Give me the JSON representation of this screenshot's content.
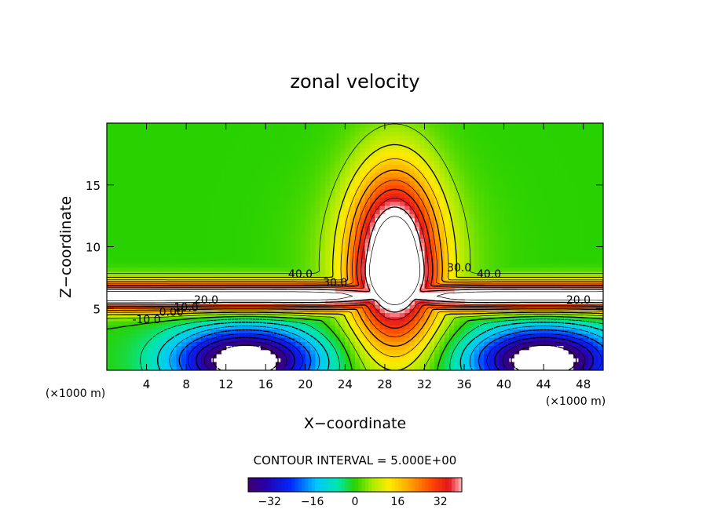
{
  "chart_data": {
    "type": "heatmap",
    "title": "zonal velocity",
    "xlabel": "X−coordinate",
    "ylabel": "Z−coordinate",
    "x_unit_left": "(×1000 m)",
    "x_unit_right": "(×1000 m)",
    "xlim": [
      0,
      50
    ],
    "ylim": [
      0,
      20
    ],
    "x_ticks": [
      4,
      8,
      12,
      16,
      20,
      24,
      28,
      32,
      36,
      40,
      44,
      48
    ],
    "y_ticks": [
      5,
      10,
      15
    ],
    "contour_interval_text": "CONTOUR INTERVAL = 5.000E+00",
    "contour_labels": [
      {
        "text": "40.0",
        "x": 19.5,
        "z": 7.5
      },
      {
        "text": "30.0",
        "x": 23.0,
        "z": 6.8
      },
      {
        "text": "20.0",
        "x": 10.0,
        "z": 5.4
      },
      {
        "text": "10.0",
        "x": 8.0,
        "z": 4.8
      },
      {
        "text": "0.00",
        "x": 6.5,
        "z": 4.4
      },
      {
        "text": "-10.0",
        "x": 4.0,
        "z": 3.8
      },
      {
        "text": "30.0",
        "x": 35.5,
        "z": 8.0
      },
      {
        "text": "40.0",
        "x": 38.5,
        "z": 7.5
      },
      {
        "text": "20.0",
        "x": 47.5,
        "z": 5.4
      }
    ],
    "colorbar": {
      "min": -40,
      "max": 40,
      "ticks": [
        -32,
        -16,
        0,
        16,
        32
      ],
      "tick_labels": [
        "−32",
        "−16",
        "0",
        "16",
        "32"
      ]
    },
    "field_description_values": {
      "max_jet_speed": 45,
      "min_speed": -40
    }
  }
}
